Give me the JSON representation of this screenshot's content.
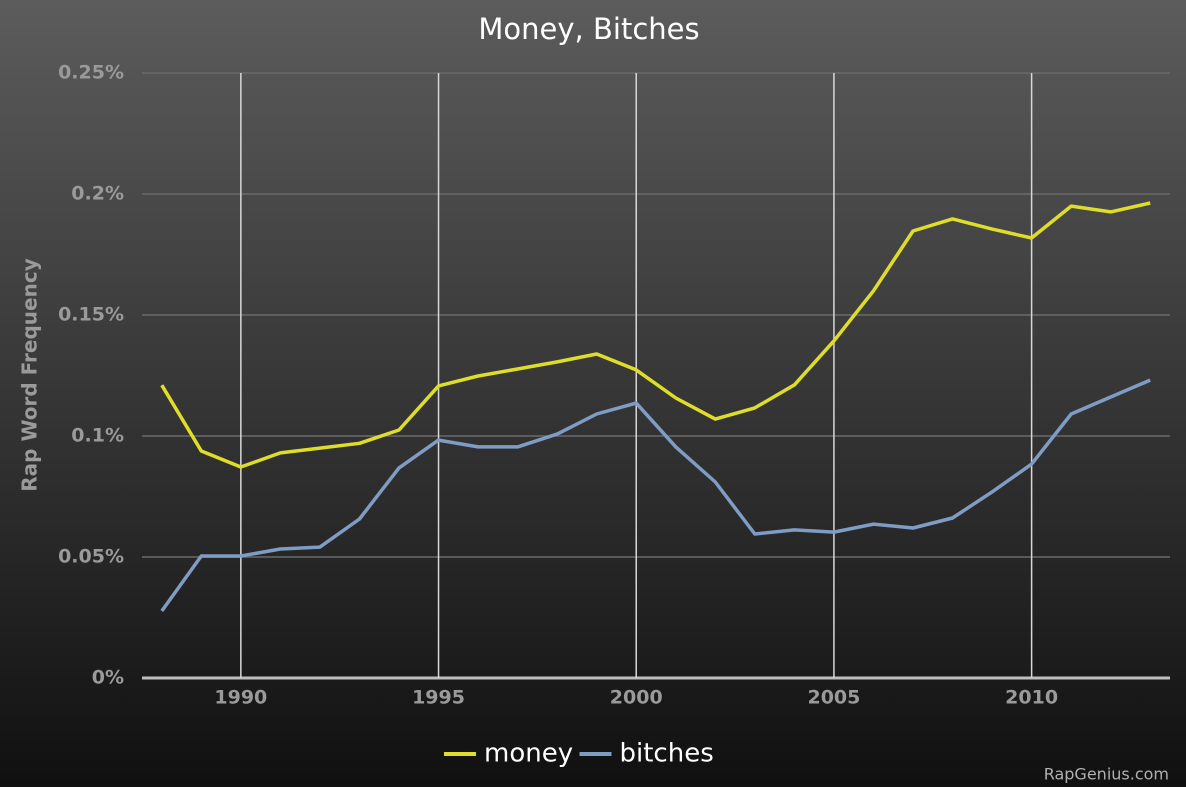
{
  "chart_data": {
    "type": "line",
    "title": "Money, Bitches",
    "y_label": "Rap Word Frequency",
    "watermark": "RapGenius.com",
    "x": [
      1988,
      1989,
      1990,
      1991,
      1992,
      1993,
      1994,
      1995,
      1996,
      1997,
      1998,
      1999,
      2000,
      2001,
      2002,
      2003,
      2004,
      2005,
      2006,
      2007,
      2008,
      2009,
      2010,
      2011,
      2012,
      2013
    ],
    "series": [
      {
        "name": "money",
        "color": "#dede2a",
        "values": [
          0.121,
          0.0938,
          0.0872,
          0.093,
          0.095,
          0.097,
          0.1025,
          0.1207,
          0.1248,
          0.1277,
          0.1306,
          0.1339,
          0.1273,
          0.1157,
          0.107,
          0.1116,
          0.1211,
          0.1393,
          0.16,
          0.1847,
          0.1897,
          0.1855,
          0.1818,
          0.195,
          0.1926,
          0.1963
        ]
      },
      {
        "name": "bitches",
        "color": "#7f9cc4",
        "values": [
          0.0277,
          0.0504,
          0.0504,
          0.0533,
          0.0541,
          0.0657,
          0.0868,
          0.0983,
          0.0955,
          0.0955,
          0.1008,
          0.1091,
          0.1136,
          0.0955,
          0.081,
          0.0595,
          0.0612,
          0.0603,
          0.0636,
          0.062,
          0.0661,
          0.0769,
          0.0884,
          0.1091,
          0.1161,
          0.1231
        ]
      }
    ],
    "xlim": [
      1987.5,
      2013.5
    ],
    "xticks": [
      1990,
      1995,
      2000,
      2005,
      2010
    ],
    "ylim": [
      0,
      0.25
    ],
    "yticks": [
      {
        "value": 0,
        "label": "0%"
      },
      {
        "value": 0.05,
        "label": "0.05%"
      },
      {
        "value": 0.1,
        "label": "0.1%"
      },
      {
        "value": 0.15,
        "label": "0.15%"
      },
      {
        "value": 0.2,
        "label": "0.2%"
      },
      {
        "value": 0.25,
        "label": "0.25%"
      }
    ],
    "grid": true,
    "legend": "bottom"
  }
}
